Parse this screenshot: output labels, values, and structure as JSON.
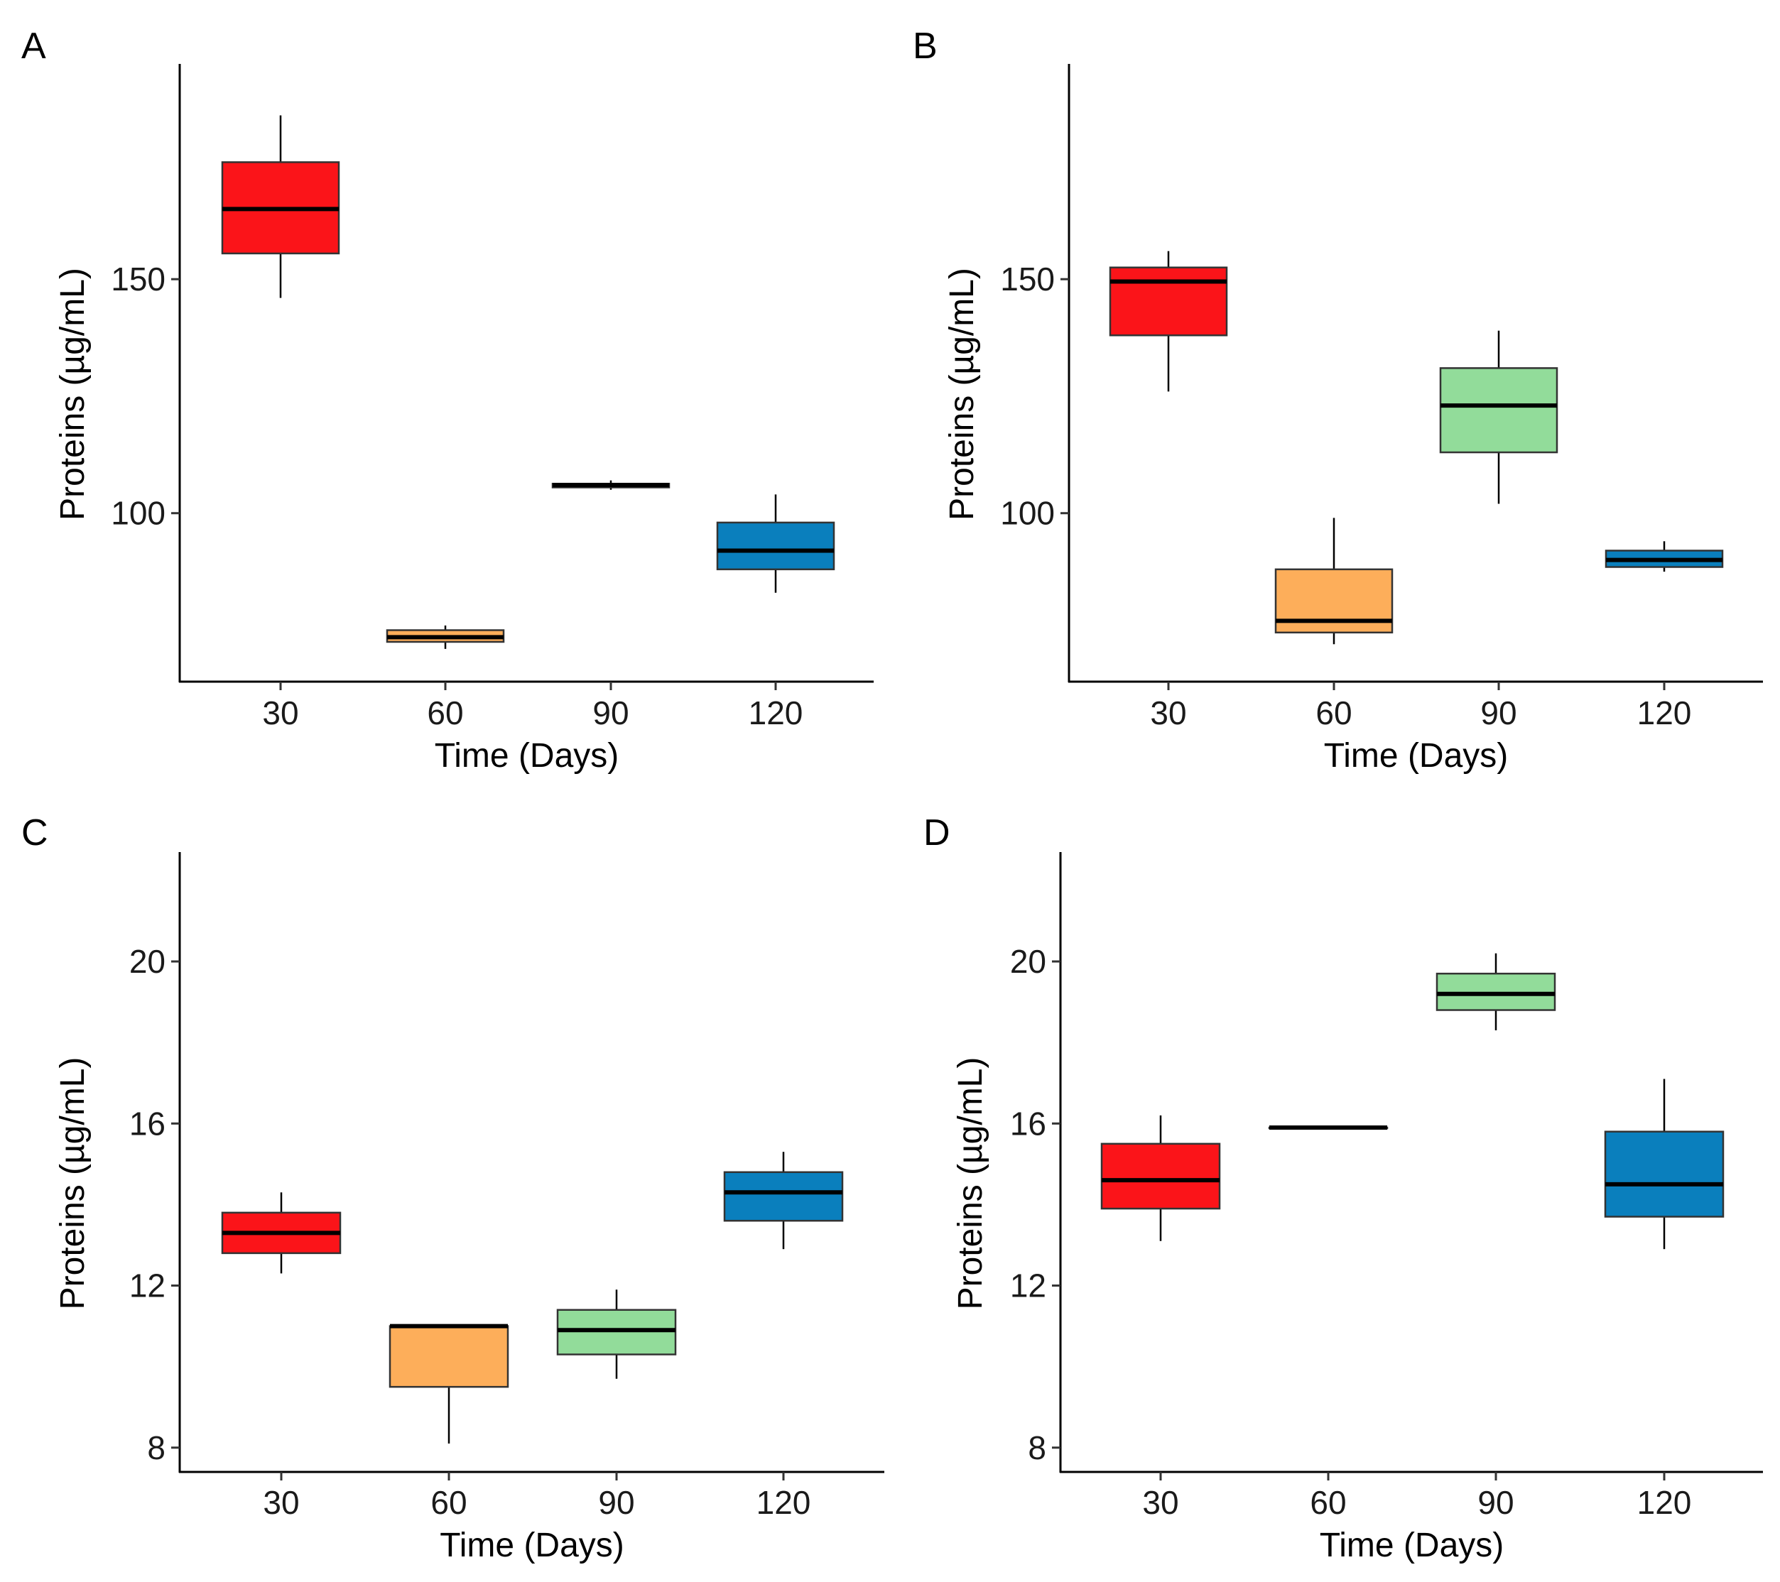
{
  "chart_data": [
    {
      "panel": "A",
      "type": "box",
      "xlabel": "Time (Days)",
      "ylabel": "Proteins (µg/mL)",
      "categories": [
        "30",
        "60",
        "90",
        "120"
      ],
      "yticks": [
        100,
        150
      ],
      "ylim": [
        64,
        196
      ],
      "boxes": [
        {
          "category": "30",
          "min": 146,
          "q1": 155.5,
          "median": 165,
          "q3": 175,
          "max": 185,
          "color": "#fb1419"
        },
        {
          "category": "60",
          "min": 71,
          "q1": 72.5,
          "median": 73.5,
          "q3": 75,
          "max": 76,
          "color": "#fdae5a"
        },
        {
          "category": "90",
          "min": 105,
          "q1": 105.5,
          "median": 106,
          "q3": 106.3,
          "max": 107,
          "color": "#92dc9a"
        },
        {
          "category": "120",
          "min": 83,
          "q1": 88,
          "median": 92,
          "q3": 98,
          "max": 104,
          "color": "#0a7fbd"
        }
      ]
    },
    {
      "panel": "B",
      "type": "box",
      "xlabel": "Time (Days)",
      "ylabel": "Proteins (µg/mL)",
      "categories": [
        "30",
        "60",
        "90",
        "120"
      ],
      "yticks": [
        100,
        150
      ],
      "ylim": [
        64,
        196
      ],
      "boxes": [
        {
          "category": "30",
          "min": 126,
          "q1": 138,
          "median": 149.5,
          "q3": 152.5,
          "max": 156,
          "color": "#fb1419"
        },
        {
          "category": "60",
          "min": 72,
          "q1": 74.5,
          "median": 77,
          "q3": 88,
          "max": 99,
          "color": "#fdae5a"
        },
        {
          "category": "90",
          "min": 102,
          "q1": 113,
          "median": 123,
          "q3": 131,
          "max": 139,
          "color": "#92dc9a"
        },
        {
          "category": "120",
          "min": 87.5,
          "q1": 88.5,
          "median": 90,
          "q3": 92,
          "max": 94,
          "color": "#0a7fbd"
        }
      ]
    },
    {
      "panel": "C",
      "type": "box",
      "xlabel": "Time (Days)",
      "ylabel": "Proteins (µg/mL)",
      "categories": [
        "30",
        "60",
        "90",
        "120"
      ],
      "yticks": [
        8,
        12,
        16,
        20
      ],
      "ylim": [
        7.4,
        22.7
      ],
      "boxes": [
        {
          "category": "30",
          "min": 12.3,
          "q1": 12.8,
          "median": 13.3,
          "q3": 13.8,
          "max": 14.3,
          "color": "#fb1419"
        },
        {
          "category": "60",
          "min": 8.1,
          "q1": 9.5,
          "median": 11.0,
          "q3": 11.0,
          "max": 11.0,
          "color": "#fdae5a"
        },
        {
          "category": "90",
          "min": 9.7,
          "q1": 10.3,
          "median": 10.9,
          "q3": 11.4,
          "max": 11.9,
          "color": "#92dc9a"
        },
        {
          "category": "120",
          "min": 12.9,
          "q1": 13.6,
          "median": 14.3,
          "q3": 14.8,
          "max": 15.3,
          "color": "#0a7fbd"
        }
      ]
    },
    {
      "panel": "D",
      "type": "box",
      "xlabel": "Time (Days)",
      "ylabel": "Proteins (µg/mL)",
      "categories": [
        "30",
        "60",
        "90",
        "120"
      ],
      "yticks": [
        8,
        12,
        16,
        20
      ],
      "ylim": [
        7.4,
        22.7
      ],
      "boxes": [
        {
          "category": "30",
          "min": 13.1,
          "q1": 13.9,
          "median": 14.6,
          "q3": 15.5,
          "max": 16.2,
          "color": "#fb1419"
        },
        {
          "category": "60",
          "min": 15.9,
          "q1": 15.9,
          "median": 15.9,
          "q3": 15.9,
          "max": 15.9,
          "color": "#fdae5a"
        },
        {
          "category": "90",
          "min": 18.3,
          "q1": 18.8,
          "median": 19.2,
          "q3": 19.7,
          "max": 20.2,
          "color": "#92dc9a"
        },
        {
          "category": "120",
          "min": 12.9,
          "q1": 13.7,
          "median": 14.5,
          "q3": 15.8,
          "max": 17.1,
          "color": "#0a7fbd"
        }
      ]
    }
  ]
}
